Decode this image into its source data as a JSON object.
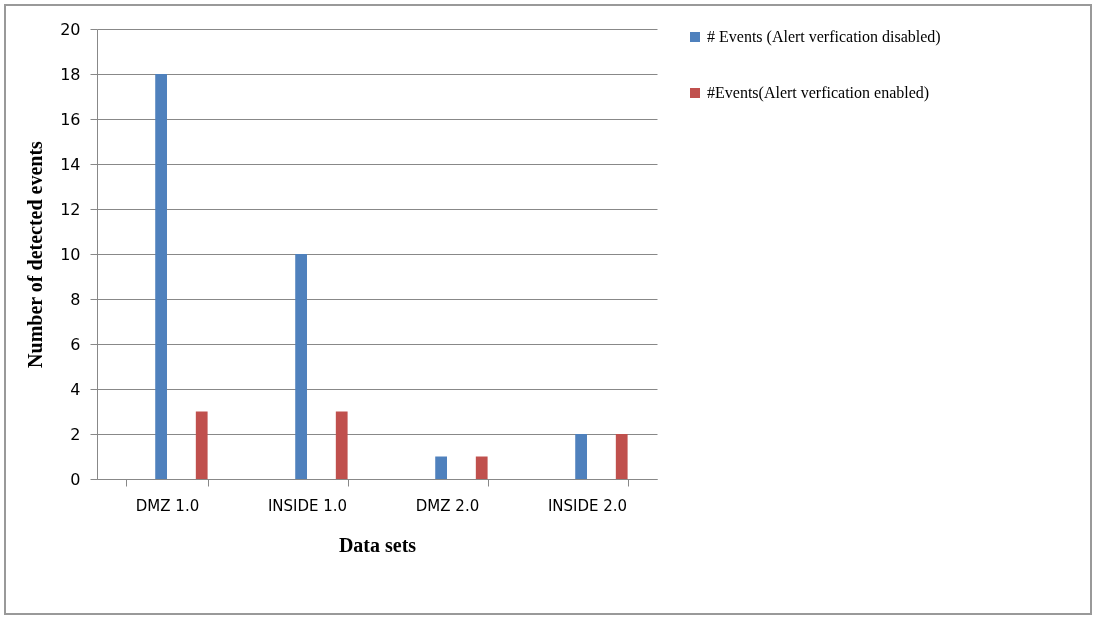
{
  "chart_data": {
    "type": "bar",
    "xlabel": "Data sets",
    "ylabel": "Number of detected events",
    "categories": [
      "DMZ 1.0",
      "INSIDE 1.0",
      "DMZ 2.0",
      "INSIDE 2.0"
    ],
    "series": [
      {
        "name": "# Events (Alert verfication disabled)",
        "color": "#4f81bd",
        "values": [
          18,
          10,
          1,
          2
        ]
      },
      {
        "name": "#Events(Alert verfication enabled)",
        "color": "#c0504d",
        "values": [
          3,
          3,
          1,
          2
        ]
      }
    ],
    "ylim": [
      0,
      20
    ],
    "yticks": [
      0,
      2,
      4,
      6,
      8,
      10,
      12,
      14,
      16,
      18,
      20
    ],
    "grid": "y",
    "legend": "right"
  }
}
